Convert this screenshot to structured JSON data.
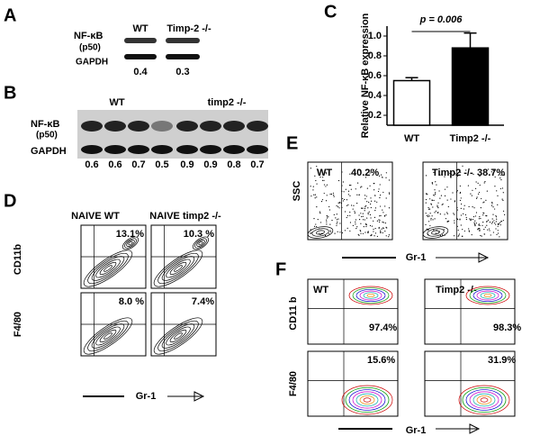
{
  "panels": {
    "A": {
      "letter": "A",
      "row_labels": [
        "NF-κB",
        "(p50)",
        "GAPDH"
      ],
      "columns": [
        "WT",
        "Timp-2 -/-"
      ],
      "values": [
        0.4,
        0.3
      ]
    },
    "B": {
      "letter": "B",
      "row_labels": [
        "NF-κB",
        "(p50)",
        "GAPDH"
      ],
      "columns": [
        "WT",
        "timp2 -/-"
      ],
      "values": [
        0.6,
        0.6,
        0.7,
        0.5,
        0.9,
        0.9,
        0.8,
        0.7
      ]
    },
    "C": {
      "letter": "C"
    },
    "D": {
      "letter": "D",
      "columns": [
        "NAIVE WT",
        "NAIVE timp2 -/-"
      ],
      "row_labels": [
        "CD11b",
        "F4/80"
      ],
      "percents": [
        "13.1%",
        "10.3 %",
        "8.0 %",
        "7.4%"
      ],
      "x_label": "Gr-1"
    },
    "E": {
      "letter": "E",
      "y_label": "SSC",
      "groups": [
        "WT",
        "Timp2 -/-"
      ],
      "percents": [
        "40.2%",
        "38.7%"
      ],
      "x_label": "Gr-1"
    },
    "F": {
      "letter": "F",
      "row_labels": [
        "CD11 b",
        "F4/80"
      ],
      "groups": [
        "WT",
        "Timp2 -/-"
      ],
      "percents": [
        "97.4%",
        "98.3%",
        "15.6%",
        "31.9%"
      ],
      "x_label": "Gr-1"
    }
  },
  "chart_data": {
    "type": "bar",
    "y_label": "Relative NF-κB expression",
    "annotation": "p = 0.006",
    "categories": [
      "WT",
      "Timp2 -/-"
    ],
    "values": [
      0.55,
      0.88
    ],
    "errors": [
      0.03,
      0.15
    ],
    "colors": [
      "#ffffff",
      "#000000"
    ],
    "ylim": [
      0.1,
      1.1
    ],
    "yticks": [
      0.2,
      0.4,
      0.6,
      0.8,
      {
        "value": 1,
        "label": "1.0"
      }
    ]
  }
}
